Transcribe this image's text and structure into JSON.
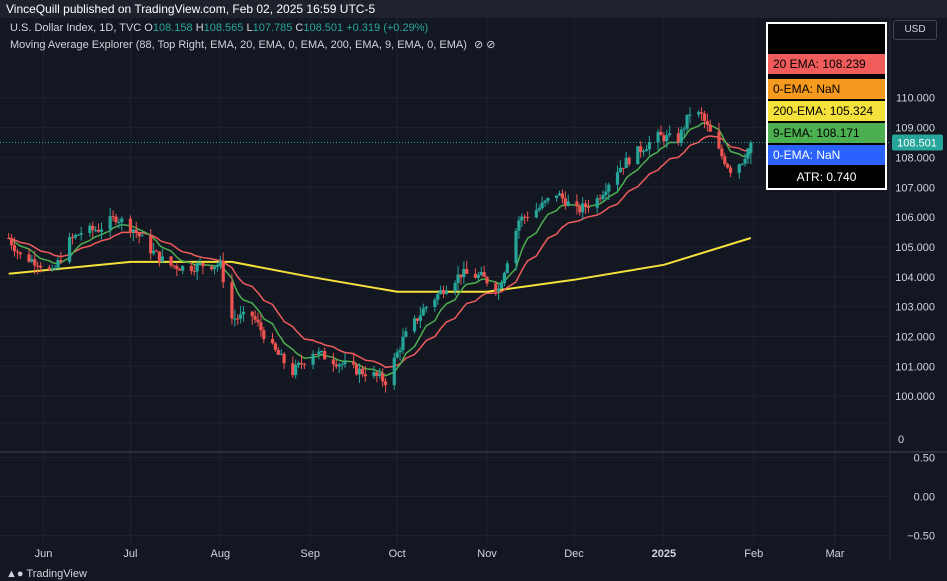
{
  "header": {
    "publisher_line": "VinceQuill published on TradingView.com, Feb 02, 2025 16:59 UTC-5"
  },
  "legend": {
    "symbol": "U.S. Dollar Index, 1D, TVC",
    "open_label": "O",
    "open": "108.158",
    "high_label": "H",
    "high": "108.565",
    "low_label": "L",
    "low": "107.785",
    "close_label": "C",
    "close": "108.501",
    "change": "+0.319 (+0.29%)",
    "indicator": "Moving Average Explorer (88, Top Right, EMA, 20, EMA, 0, EMA, 200, EMA, 9, EMA, 0, EMA)",
    "indicator_icons": [
      "eye-off-icon",
      "eye-off-icon"
    ]
  },
  "currency_button": "USD",
  "explorer_table": [
    {
      "label": "20 EMA: 108.239",
      "bg": "#f05b5b",
      "fg": "#000000"
    },
    {
      "label": "0-EMA: NaN",
      "bg": "#f59a1f",
      "fg": "#000000"
    },
    {
      "label": "200-EMA: 105.324",
      "bg": "#f5e13c",
      "fg": "#000000"
    },
    {
      "label": "9-EMA: 108.171",
      "bg": "#4caf50",
      "fg": "#000000"
    },
    {
      "label": "0-EMA: NaN",
      "bg": "#2962ff",
      "fg": "#ffffff"
    },
    {
      "label": "ATR: 0.740",
      "bg": "#000000",
      "fg": "#ffffff"
    }
  ],
  "colors": {
    "background": "#131722",
    "grid": "#1f2330",
    "up": "#26a69a",
    "down": "#ef5350",
    "ema20": "#f05b5b",
    "ema9": "#4caf50",
    "ema200": "#f5e13c",
    "last_price_bg": "#26a69a"
  },
  "chart_data": {
    "type": "candlestick",
    "title": "U.S. Dollar Index, 1D, TVC",
    "x_ticks": [
      "Jun",
      "Jul",
      "Aug",
      "Sep",
      "Oct",
      "Nov",
      "Dec",
      "2025",
      "Feb",
      "Mar"
    ],
    "y_ticks": [
      "110.000",
      "109.000",
      "108.000",
      "107.000",
      "106.000",
      "105.000",
      "104.000",
      "103.000",
      "102.000",
      "101.000",
      "100.000"
    ],
    "ylim": [
      99.2,
      111.6
    ],
    "last_price": "108.501",
    "oscillator": {
      "separator_label": "0",
      "y_ticks": [
        "0.50",
        "0.00",
        "−0.50"
      ],
      "ylim": [
        -0.62,
        0.62
      ]
    },
    "close_series": [
      {
        "date": "2024-05-20",
        "close": 105.3
      },
      {
        "date": "2024-05-24",
        "close": 104.7
      },
      {
        "date": "2024-05-30",
        "close": 104.5
      },
      {
        "date": "2024-06-04",
        "close": 104.1
      },
      {
        "date": "2024-06-10",
        "close": 105.2
      },
      {
        "date": "2024-06-14",
        "close": 105.5
      },
      {
        "date": "2024-06-20",
        "close": 105.6
      },
      {
        "date": "2024-06-26",
        "close": 106.0
      },
      {
        "date": "2024-07-02",
        "close": 105.6
      },
      {
        "date": "2024-07-08",
        "close": 104.9
      },
      {
        "date": "2024-07-14",
        "close": 104.4
      },
      {
        "date": "2024-07-20",
        "close": 104.3
      },
      {
        "date": "2024-07-26",
        "close": 104.4
      },
      {
        "date": "2024-08-01",
        "close": 104.4
      },
      {
        "date": "2024-08-05",
        "close": 102.6
      },
      {
        "date": "2024-08-12",
        "close": 102.7
      },
      {
        "date": "2024-08-19",
        "close": 101.6
      },
      {
        "date": "2024-08-26",
        "close": 100.8
      },
      {
        "date": "2024-09-02",
        "close": 101.5
      },
      {
        "date": "2024-09-09",
        "close": 101.2
      },
      {
        "date": "2024-09-16",
        "close": 100.9
      },
      {
        "date": "2024-09-23",
        "close": 100.7
      },
      {
        "date": "2024-09-27",
        "close": 100.5
      },
      {
        "date": "2024-10-03",
        "close": 101.9
      },
      {
        "date": "2024-10-10",
        "close": 102.9
      },
      {
        "date": "2024-10-17",
        "close": 103.6
      },
      {
        "date": "2024-10-23",
        "close": 104.1
      },
      {
        "date": "2024-10-30",
        "close": 104.0
      },
      {
        "date": "2024-11-05",
        "close": 103.6
      },
      {
        "date": "2024-11-12",
        "close": 105.9
      },
      {
        "date": "2024-11-19",
        "close": 106.3
      },
      {
        "date": "2024-11-25",
        "close": 106.8
      },
      {
        "date": "2024-12-02",
        "close": 106.2
      },
      {
        "date": "2024-12-09",
        "close": 106.6
      },
      {
        "date": "2024-12-16",
        "close": 107.6
      },
      {
        "date": "2024-12-23",
        "close": 108.2
      },
      {
        "date": "2024-12-30",
        "close": 108.7
      },
      {
        "date": "2025-01-06",
        "close": 108.6
      },
      {
        "date": "2025-01-10",
        "close": 109.5
      },
      {
        "date": "2025-01-14",
        "close": 109.4
      },
      {
        "date": "2025-01-20",
        "close": 108.2
      },
      {
        "date": "2025-01-24",
        "close": 107.6
      },
      {
        "date": "2025-01-28",
        "close": 107.9
      },
      {
        "date": "2025-01-31",
        "close": 108.5
      }
    ],
    "ema200_series": [
      {
        "date": "2024-05-20",
        "value": 104.1
      },
      {
        "date": "2024-07-01",
        "value": 104.5
      },
      {
        "date": "2024-08-05",
        "value": 104.5
      },
      {
        "date": "2024-09-01",
        "value": 104.0
      },
      {
        "date": "2024-10-01",
        "value": 103.5
      },
      {
        "date": "2024-11-01",
        "value": 103.5
      },
      {
        "date": "2024-12-01",
        "value": 103.9
      },
      {
        "date": "2025-01-01",
        "value": 104.4
      },
      {
        "date": "2025-01-31",
        "value": 105.3
      }
    ]
  },
  "footer": {
    "logo_text": "TradingView"
  }
}
